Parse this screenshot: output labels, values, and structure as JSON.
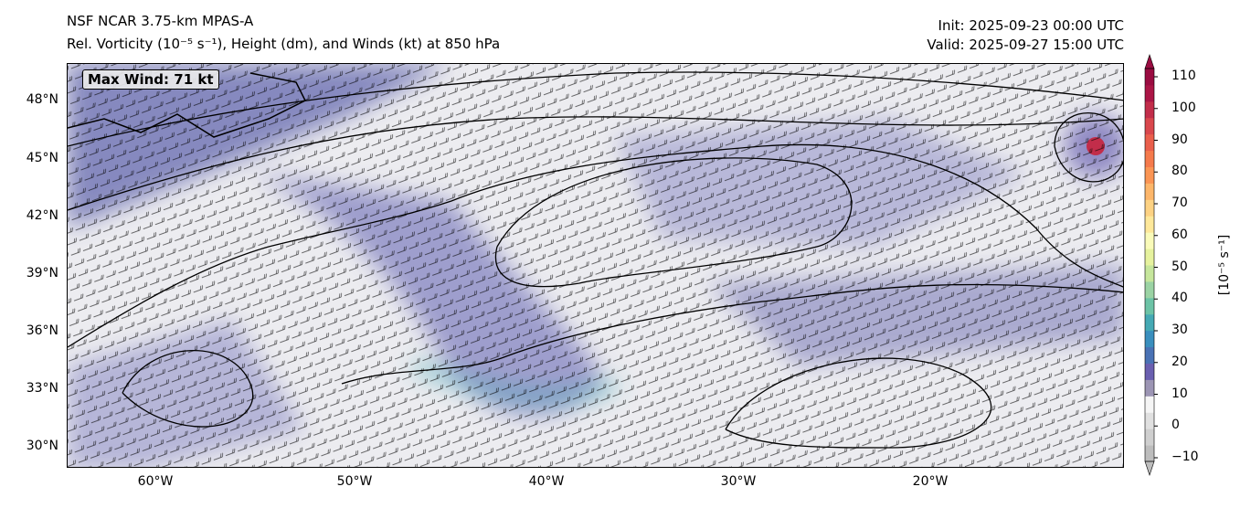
{
  "header": {
    "title": "NSF NCAR 3.75-km MPAS-A",
    "subtitle": "Rel. Vorticity (10⁻⁵ s⁻¹), Height (dm), and Winds (kt) at 850 hPa",
    "init": "Init: 2025-09-23 00:00 UTC",
    "valid": "Valid: 2025-09-27 15:00 UTC"
  },
  "map": {
    "max_wind_label": "Max Wind: 71 kt",
    "lat_labels": [
      "48°N",
      "45°N",
      "42°N",
      "39°N",
      "36°N",
      "33°N",
      "30°N"
    ],
    "lon_labels": [
      "60°W",
      "50°W",
      "40°W",
      "30°W",
      "20°W"
    ]
  },
  "colorbar": {
    "label": "[10⁻⁵ s⁻¹]",
    "ticks": [
      "110",
      "100",
      "90",
      "80",
      "70",
      "60",
      "50",
      "40",
      "30",
      "20",
      "10",
      "0",
      "−10"
    ],
    "colors": [
      "#bdbdbd",
      "#cfcfcf",
      "#e0e0e0",
      "#f5f5f5",
      "#9c95b4",
      "#6a5fb0",
      "#4a72b5",
      "#3a8fbe",
      "#45a9b4",
      "#6cc3a6",
      "#9bd3a4",
      "#c6e69c",
      "#e6f29e",
      "#fafbb9",
      "#fee89a",
      "#fdd283",
      "#fdb66a",
      "#fb9554",
      "#f57a4c",
      "#ea5f4c",
      "#d9474d",
      "#c22d4a",
      "#ab1546",
      "#9a0c41"
    ]
  }
}
